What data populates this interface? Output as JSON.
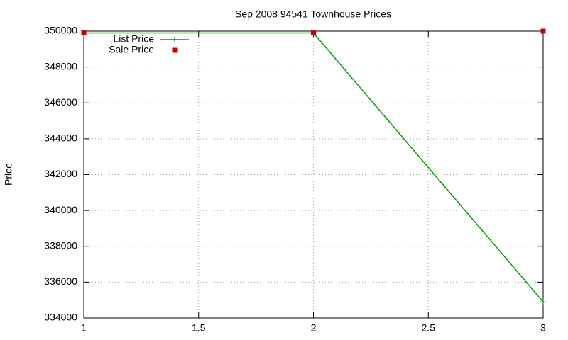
{
  "chart_data": {
    "type": "line",
    "title": "Sep 2008 94541 Townhouse Prices",
    "y_label": "Price",
    "x": [
      1,
      2,
      3
    ],
    "series": [
      {
        "name": "List Price",
        "color": "#009900",
        "style": "lines+points",
        "values": [
          349900,
          349900,
          334900
        ]
      },
      {
        "name": "Sale Price",
        "color": "#cc0000",
        "style": "points",
        "values": [
          349900,
          349900,
          350000
        ]
      }
    ],
    "xlim": [
      1,
      3
    ],
    "xticks": [
      1,
      1.5,
      2,
      2.5,
      3
    ],
    "ylim": [
      334000,
      350000
    ],
    "yticks": [
      334000,
      336000,
      338000,
      340000,
      342000,
      344000,
      346000,
      348000,
      350000
    ],
    "grid": true,
    "legend": "top-left"
  }
}
